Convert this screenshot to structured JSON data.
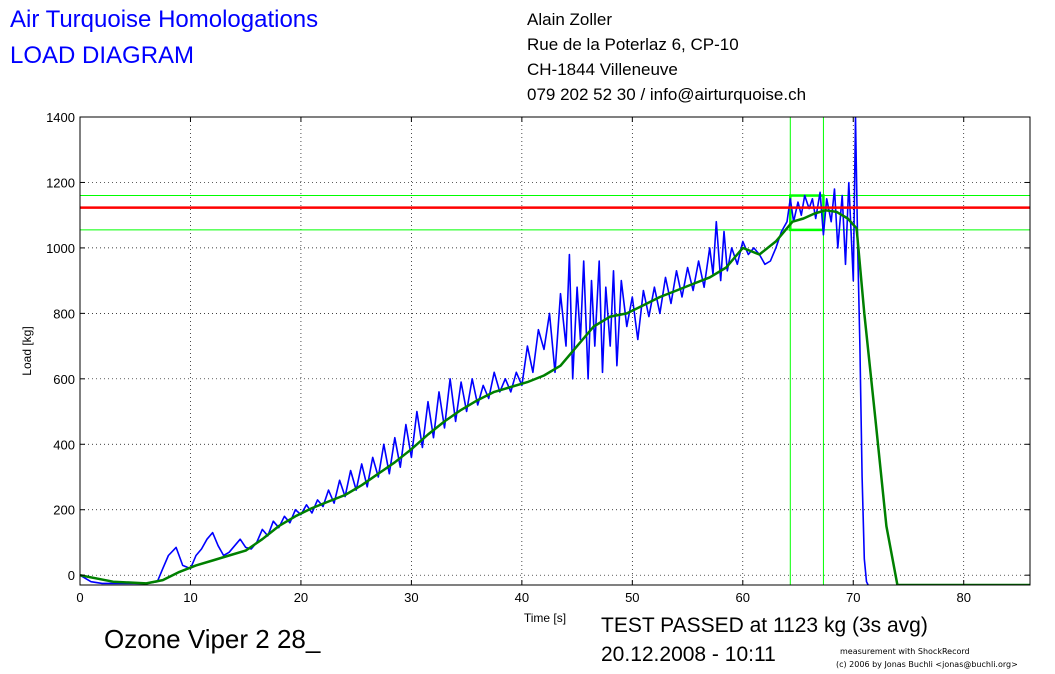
{
  "header": {
    "title_line1": "Air Turquoise Homologations",
    "title_line2": "LOAD DIAGRAM",
    "address": [
      "Alain Zoller",
      "Rue de la Poterlaz 6, CP-10",
      "CH-1844 Villeneuve",
      "079 202 52 30 / info@airturquoise.ch"
    ]
  },
  "footer": {
    "model": "Ozone Viper 2 28_",
    "result": "TEST PASSED at 1123 kg (3s avg)",
    "datetime": "20.12.2008 - 10:11",
    "credit_line1": "measurement with ShockRecord",
    "credit_line2": "(c) 2006 by Jonas Buchli <jonas@buchli.org>"
  },
  "chart_data": {
    "type": "line",
    "xlabel": "Time [s]",
    "ylabel": "Load [kg]",
    "xlim": [
      0,
      86
    ],
    "ylim": [
      -30,
      1400
    ],
    "xticks": [
      0,
      10,
      20,
      30,
      40,
      50,
      60,
      70,
      80
    ],
    "yticks": [
      0,
      200,
      400,
      600,
      800,
      1000,
      1200,
      1400
    ],
    "grid": true,
    "colors": {
      "raw": "#0000ff",
      "avg": "#008000",
      "threshold": "#ff0000",
      "limits": "#00ff00"
    },
    "threshold_load": 1123,
    "band_upper": 1160,
    "band_lower": 1055,
    "window_start": 64.3,
    "window_end": 67.3,
    "series": [
      {
        "key": "raw",
        "x": [
          0,
          1,
          2,
          4,
          6,
          7,
          7.5,
          8,
          8.7,
          9.3,
          10,
          10.5,
          11,
          11.5,
          12,
          12.5,
          13,
          13.5,
          14,
          14.5,
          15,
          15.5,
          16,
          16.5,
          17,
          17.5,
          18,
          18.5,
          19,
          19.5,
          20,
          20.5,
          21,
          21.5,
          22,
          22.5,
          23,
          23.5,
          24,
          24.5,
          25,
          25.5,
          26,
          26.5,
          27,
          27.5,
          28,
          28.5,
          29,
          29.5,
          30,
          30.5,
          31,
          31.5,
          32,
          32.5,
          33,
          33.5,
          34,
          34.5,
          35,
          35.5,
          36,
          36.5,
          37,
          37.5,
          38,
          38.5,
          39,
          39.5,
          40,
          40.5,
          41,
          41.5,
          42,
          42.5,
          43,
          43.5,
          44,
          44.3,
          44.6,
          45,
          45.3,
          45.6,
          46,
          46.3,
          46.6,
          47,
          47.3,
          47.6,
          48,
          48.3,
          48.6,
          49,
          49.5,
          50,
          50.5,
          51,
          51.5,
          52,
          52.5,
          53,
          53.5,
          54,
          54.5,
          55,
          55.5,
          56,
          56.5,
          57,
          57.3,
          57.6,
          58,
          58.3,
          58.6,
          59,
          59.5,
          60,
          60.5,
          61,
          61.5,
          62,
          62.5,
          63,
          63.5,
          64,
          64.3,
          64.6,
          65,
          65.3,
          65.6,
          66,
          66.3,
          66.6,
          67,
          67.3,
          67.6,
          68,
          68.3,
          68.6,
          69,
          69.3,
          69.6,
          70,
          70.2,
          70.4,
          70.6,
          70.8,
          71,
          71.2,
          71.5,
          72,
          74,
          78,
          82,
          86
        ],
        "y": [
          0,
          -20,
          -25,
          -25,
          -25,
          -20,
          20,
          60,
          85,
          30,
          20,
          60,
          80,
          110,
          130,
          90,
          60,
          70,
          90,
          110,
          85,
          80,
          100,
          140,
          120,
          165,
          145,
          180,
          160,
          200,
          185,
          215,
          190,
          230,
          210,
          260,
          220,
          290,
          240,
          320,
          260,
          340,
          270,
          360,
          300,
          400,
          310,
          420,
          330,
          460,
          360,
          500,
          390,
          530,
          420,
          560,
          450,
          600,
          470,
          590,
          500,
          600,
          520,
          580,
          540,
          620,
          560,
          600,
          560,
          620,
          580,
          700,
          620,
          750,
          690,
          800,
          620,
          860,
          700,
          980,
          600,
          880,
          720,
          960,
          600,
          900,
          700,
          960,
          620,
          880,
          700,
          930,
          640,
          900,
          760,
          850,
          720,
          870,
          790,
          880,
          800,
          910,
          830,
          930,
          850,
          940,
          870,
          960,
          880,
          1000,
          920,
          1080,
          900,
          1050,
          930,
          1000,
          950,
          1020,
          980,
          1000,
          980,
          950,
          960,
          1000,
          1050,
          1080,
          1150,
          1080,
          1140,
          1100,
          1160,
          1120,
          1150,
          1090,
          1170,
          1040,
          1150,
          1080,
          1180,
          1000,
          1160,
          950,
          1200,
          900,
          1400,
          1000,
          700,
          300,
          50,
          -20,
          -40,
          -40,
          -35,
          -30,
          -30,
          -30
        ]
      },
      {
        "key": "avg",
        "x": [
          0,
          3,
          6,
          7.5,
          9,
          10.5,
          12,
          13.5,
          15,
          16.5,
          18,
          19.5,
          21,
          22.5,
          24,
          25.5,
          27,
          28.5,
          30,
          31.5,
          33,
          34.5,
          36,
          37.5,
          39,
          40.5,
          42,
          43.5,
          45,
          46.5,
          48,
          49.5,
          51,
          52.5,
          54,
          55.5,
          57,
          58.5,
          60,
          61.5,
          63,
          64.5,
          65.5,
          66.5,
          67.5,
          68.5,
          69.5,
          70.3,
          71,
          72,
          73,
          74,
          78,
          82,
          86
        ],
        "y": [
          0,
          -20,
          -25,
          -15,
          10,
          30,
          45,
          60,
          75,
          110,
          150,
          180,
          205,
          225,
          245,
          275,
          310,
          345,
          385,
          430,
          470,
          505,
          535,
          560,
          575,
          590,
          610,
          640,
          700,
          760,
          790,
          800,
          825,
          850,
          870,
          890,
          910,
          940,
          1000,
          980,
          1020,
          1080,
          1090,
          1105,
          1115,
          1110,
          1090,
          1060,
          800,
          480,
          150,
          -30,
          -30,
          -30,
          -30
        ]
      }
    ]
  }
}
